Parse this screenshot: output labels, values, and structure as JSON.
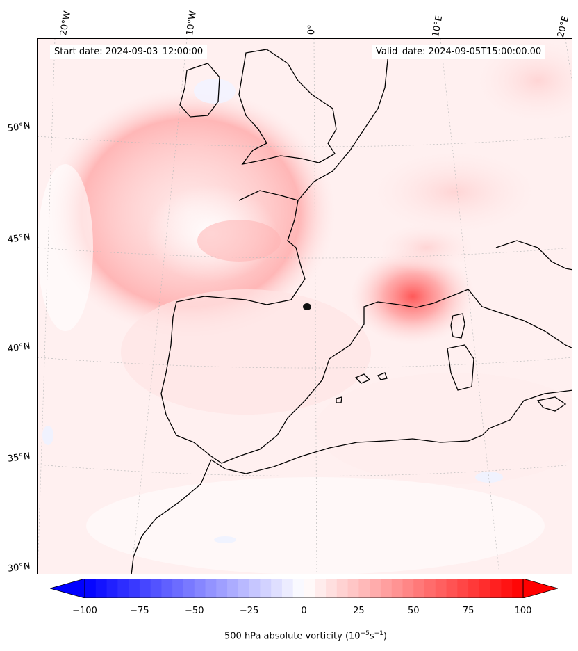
{
  "header": {
    "start_date": "Start date: 2024-09-03_12:00:00",
    "valid_date": "Valid_date: 2024-09-05T15:00:00.00"
  },
  "graticule": {
    "lon_labels": [
      "20°W",
      "10°W",
      "0°",
      "10°E",
      "20°E"
    ],
    "lat_labels": [
      "50°N",
      "45°N",
      "40°N",
      "35°N",
      "30°N"
    ]
  },
  "colorbar": {
    "min": -100,
    "max": 100,
    "ticks": [
      "−100",
      "−75",
      "−50",
      "−25",
      "0",
      "25",
      "50",
      "75",
      "100"
    ],
    "tick_values": [
      -100,
      -75,
      -50,
      -25,
      0,
      25,
      50,
      75,
      100
    ],
    "label_prefix": "500 hPa absolute vorticity (10",
    "label_exp1": "−5",
    "label_mid": "s",
    "label_exp2": "−1",
    "label_suffix": ")",
    "color_negative": "#0000ff",
    "color_zero": "#ffffff",
    "color_positive": "#ff0000",
    "extend": "both"
  },
  "map": {
    "coastline_color": "#000000",
    "grid_color": "#bbbbbb"
  }
}
